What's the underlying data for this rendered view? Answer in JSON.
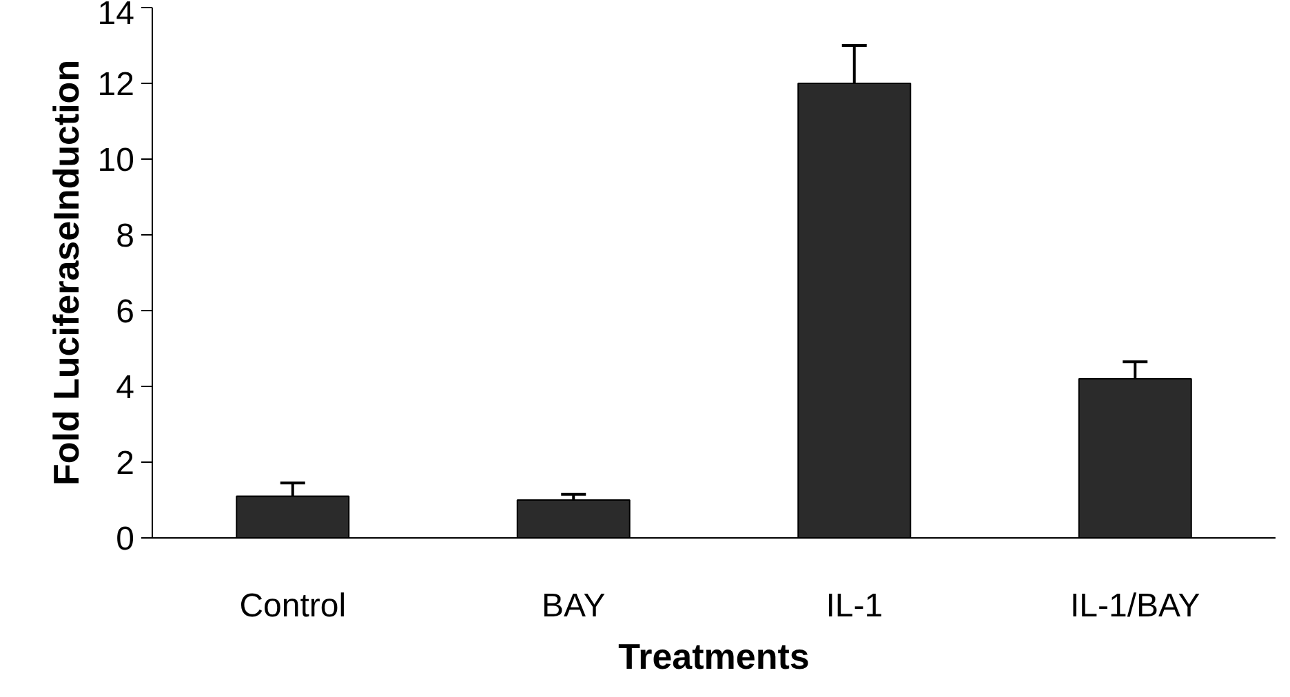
{
  "chart_data": {
    "type": "bar",
    "xlabel": "Treatments",
    "ylabel": "Fold LuciferaseInduction",
    "categories": [
      "Control",
      "BAY",
      "IL-1",
      "IL-1/BAY"
    ],
    "values": [
      1.1,
      1.0,
      12.0,
      4.2
    ],
    "errors": [
      0.35,
      0.15,
      1.0,
      0.45
    ],
    "color": "#2b2b2b",
    "ylim": [
      0,
      14
    ],
    "yticks": [
      0,
      2,
      4,
      6,
      8,
      10,
      12,
      14
    ],
    "grid": false
  }
}
